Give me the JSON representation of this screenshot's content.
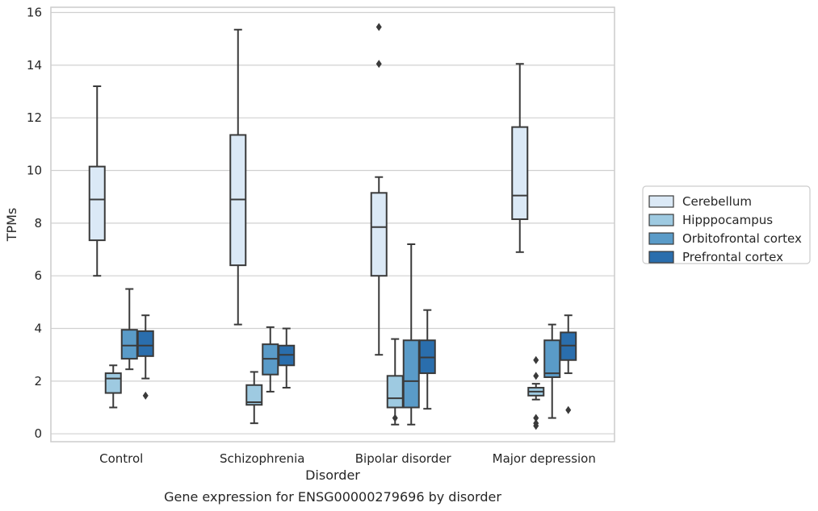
{
  "chart_data": {
    "type": "box",
    "xlabel": "Disorder",
    "ylabel": "TPMs",
    "caption": "Gene expression for ENSG00000279696 by disorder",
    "ylim": [
      -0.3,
      16.2
    ],
    "yticks": [
      0,
      2,
      4,
      6,
      8,
      10,
      12,
      14,
      16
    ],
    "grid": true,
    "legend_position": "right",
    "categories": [
      "Control",
      "Schizophrenia",
      "Bipolar disorder",
      "Major depression"
    ],
    "series": [
      {
        "name": "Cerebellum",
        "color": "#dbe9f6",
        "boxes": [
          {
            "whislo": 6.0,
            "q1": 7.35,
            "med": 8.9,
            "q3": 10.15,
            "whishi": 13.2,
            "fliers": []
          },
          {
            "whislo": 4.15,
            "q1": 6.4,
            "med": 8.9,
            "q3": 11.35,
            "whishi": 15.35,
            "fliers": []
          },
          {
            "whislo": 3.0,
            "q1": 6.0,
            "med": 7.85,
            "q3": 9.15,
            "whishi": 9.75,
            "fliers": [
              15.45,
              14.05
            ]
          },
          {
            "whislo": 6.9,
            "q1": 8.15,
            "med": 9.05,
            "q3": 11.65,
            "whishi": 14.05,
            "fliers": []
          }
        ]
      },
      {
        "name": "Hipppocampus",
        "color": "#9ecae1",
        "boxes": [
          {
            "whislo": 1.0,
            "q1": 1.55,
            "med": 2.1,
            "q3": 2.3,
            "whishi": 2.6,
            "fliers": []
          },
          {
            "whislo": 0.4,
            "q1": 1.1,
            "med": 1.2,
            "q3": 1.85,
            "whishi": 2.35,
            "fliers": []
          },
          {
            "whislo": 0.35,
            "q1": 1.0,
            "med": 1.35,
            "q3": 2.2,
            "whishi": 3.6,
            "fliers": [
              0.6
            ]
          },
          {
            "whislo": 1.3,
            "q1": 1.45,
            "med": 1.6,
            "q3": 1.75,
            "whishi": 1.9,
            "fliers": [
              2.8,
              2.2,
              0.6,
              0.4,
              0.3
            ]
          }
        ]
      },
      {
        "name": "Orbitofrontal cortex",
        "color": "#5a9bc8",
        "boxes": [
          {
            "whislo": 2.45,
            "q1": 2.85,
            "med": 3.35,
            "q3": 3.95,
            "whishi": 5.5,
            "fliers": []
          },
          {
            "whislo": 1.6,
            "q1": 2.25,
            "med": 2.85,
            "q3": 3.4,
            "whishi": 4.05,
            "fliers": []
          },
          {
            "whislo": 0.35,
            "q1": 1.0,
            "med": 2.0,
            "q3": 3.55,
            "whishi": 7.2,
            "fliers": []
          },
          {
            "whislo": 0.6,
            "q1": 2.15,
            "med": 2.3,
            "q3": 3.55,
            "whishi": 4.15,
            "fliers": []
          }
        ]
      },
      {
        "name": "Prefrontal cortex",
        "color": "#2a6ead",
        "boxes": [
          {
            "whislo": 2.1,
            "q1": 2.95,
            "med": 3.35,
            "q3": 3.9,
            "whishi": 4.5,
            "fliers": [
              1.45
            ]
          },
          {
            "whislo": 1.75,
            "q1": 2.6,
            "med": 3.0,
            "q3": 3.35,
            "whishi": 4.0,
            "fliers": []
          },
          {
            "whislo": 0.95,
            "q1": 2.3,
            "med": 2.9,
            "q3": 3.55,
            "whishi": 4.7,
            "fliers": []
          },
          {
            "whislo": 2.3,
            "q1": 2.8,
            "med": 3.35,
            "q3": 3.85,
            "whishi": 4.5,
            "fliers": [
              0.9
            ]
          }
        ]
      }
    ]
  },
  "style": {
    "grid_color": "#d0d0d0",
    "frame_color": "#cccccc",
    "line_color": "#3a3a3a",
    "text_color": "#262626"
  }
}
